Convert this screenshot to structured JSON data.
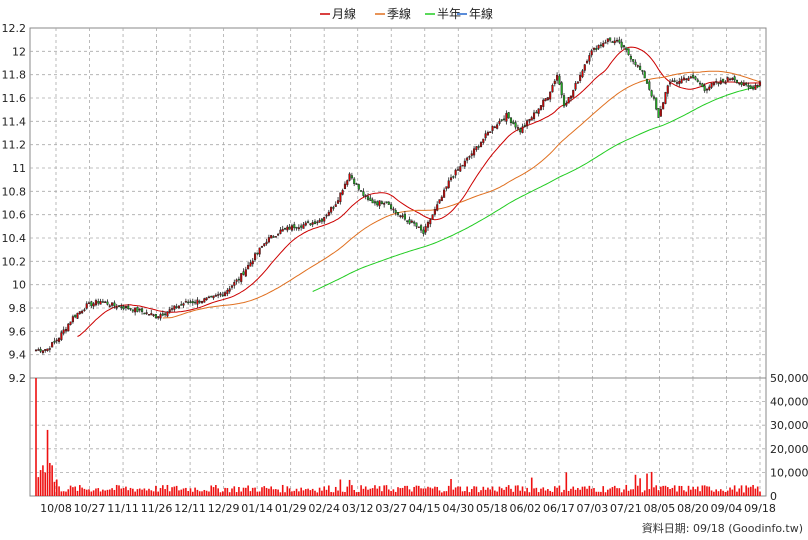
{
  "chart_data": {
    "type": "candlestick",
    "legend": [
      {
        "name": "月線",
        "color": "#cc0000"
      },
      {
        "name": "季線",
        "color": "#e07020"
      },
      {
        "name": "半年",
        "color": "#22cc22"
      },
      {
        "name": "年線",
        "color": "#2266cc"
      }
    ],
    "price_axis": {
      "min": 9.2,
      "max": 12.2,
      "ticks": [
        "9.2",
        "9.4",
        "9.6",
        "9.8",
        "10",
        "10.2",
        "10.4",
        "10.6",
        "10.8",
        "11",
        "11.2",
        "11.4",
        "11.6",
        "11.8",
        "12",
        "12.2"
      ]
    },
    "volume_axis": {
      "min": 0,
      "max": 50000,
      "ticks": [
        "0",
        "10,000",
        "20,000",
        "30,000",
        "40,000",
        "50,000"
      ]
    },
    "x_ticks": [
      "10/08",
      "10/27",
      "11/11",
      "11/26",
      "12/11",
      "12/29",
      "01/14",
      "01/29",
      "02/24",
      "03/12",
      "03/27",
      "04/15",
      "04/30",
      "05/18",
      "06/02",
      "06/17",
      "07/03",
      "07/21",
      "08/05",
      "08/20",
      "09/04",
      "09/18"
    ],
    "price_anchors": [
      [
        0,
        9.44
      ],
      [
        5,
        9.45
      ],
      [
        10,
        9.55
      ],
      [
        16,
        9.72
      ],
      [
        22,
        9.82
      ],
      [
        28,
        9.86
      ],
      [
        34,
        9.82
      ],
      [
        40,
        9.8
      ],
      [
        46,
        9.77
      ],
      [
        52,
        9.73
      ],
      [
        58,
        9.78
      ],
      [
        64,
        9.84
      ],
      [
        70,
        9.86
      ],
      [
        76,
        9.88
      ],
      [
        82,
        9.94
      ],
      [
        88,
        10.05
      ],
      [
        94,
        10.22
      ],
      [
        100,
        10.38
      ],
      [
        106,
        10.46
      ],
      [
        112,
        10.5
      ],
      [
        118,
        10.52
      ],
      [
        124,
        10.56
      ],
      [
        130,
        10.7
      ],
      [
        136,
        10.95
      ],
      [
        140,
        10.82
      ],
      [
        144,
        10.72
      ],
      [
        148,
        10.7
      ],
      [
        152,
        10.72
      ],
      [
        156,
        10.62
      ],
      [
        160,
        10.56
      ],
      [
        164,
        10.52
      ],
      [
        168,
        10.44
      ],
      [
        172,
        10.6
      ],
      [
        176,
        10.75
      ],
      [
        180,
        10.92
      ],
      [
        186,
        11.05
      ],
      [
        192,
        11.2
      ],
      [
        198,
        11.35
      ],
      [
        204,
        11.45
      ],
      [
        210,
        11.32
      ],
      [
        216,
        11.46
      ],
      [
        222,
        11.62
      ],
      [
        226,
        11.8
      ],
      [
        229,
        11.55
      ],
      [
        232,
        11.62
      ],
      [
        236,
        11.8
      ],
      [
        240,
        11.98
      ],
      [
        244,
        12.05
      ],
      [
        248,
        12.1
      ],
      [
        252,
        12.08
      ],
      [
        256,
        12.0
      ],
      [
        260,
        11.9
      ],
      [
        264,
        11.78
      ],
      [
        268,
        11.58
      ],
      [
        270,
        11.42
      ],
      [
        274,
        11.72
      ],
      [
        278,
        11.74
      ],
      [
        282,
        11.78
      ],
      [
        286,
        11.76
      ],
      [
        290,
        11.68
      ],
      [
        294,
        11.72
      ],
      [
        298,
        11.74
      ],
      [
        302,
        11.78
      ],
      [
        306,
        11.72
      ],
      [
        310,
        11.68
      ],
      [
        314,
        11.74
      ]
    ],
    "volume_spikes": [
      [
        0,
        50000
      ],
      [
        1,
        8000
      ],
      [
        2,
        11000
      ],
      [
        3,
        13000
      ],
      [
        4,
        10000
      ],
      [
        5,
        28000
      ],
      [
        6,
        14000
      ],
      [
        7,
        13000
      ],
      [
        8,
        6000
      ],
      [
        9,
        7000
      ],
      [
        230,
        10000
      ],
      [
        260,
        9000
      ],
      [
        262,
        7500
      ],
      [
        265,
        9500
      ],
      [
        267,
        10200
      ],
      [
        132,
        7000
      ],
      [
        136,
        6800
      ],
      [
        180,
        7200
      ],
      [
        215,
        7800
      ]
    ],
    "footer": "資料日期: 09/18  (Goodinfo.tw)"
  }
}
